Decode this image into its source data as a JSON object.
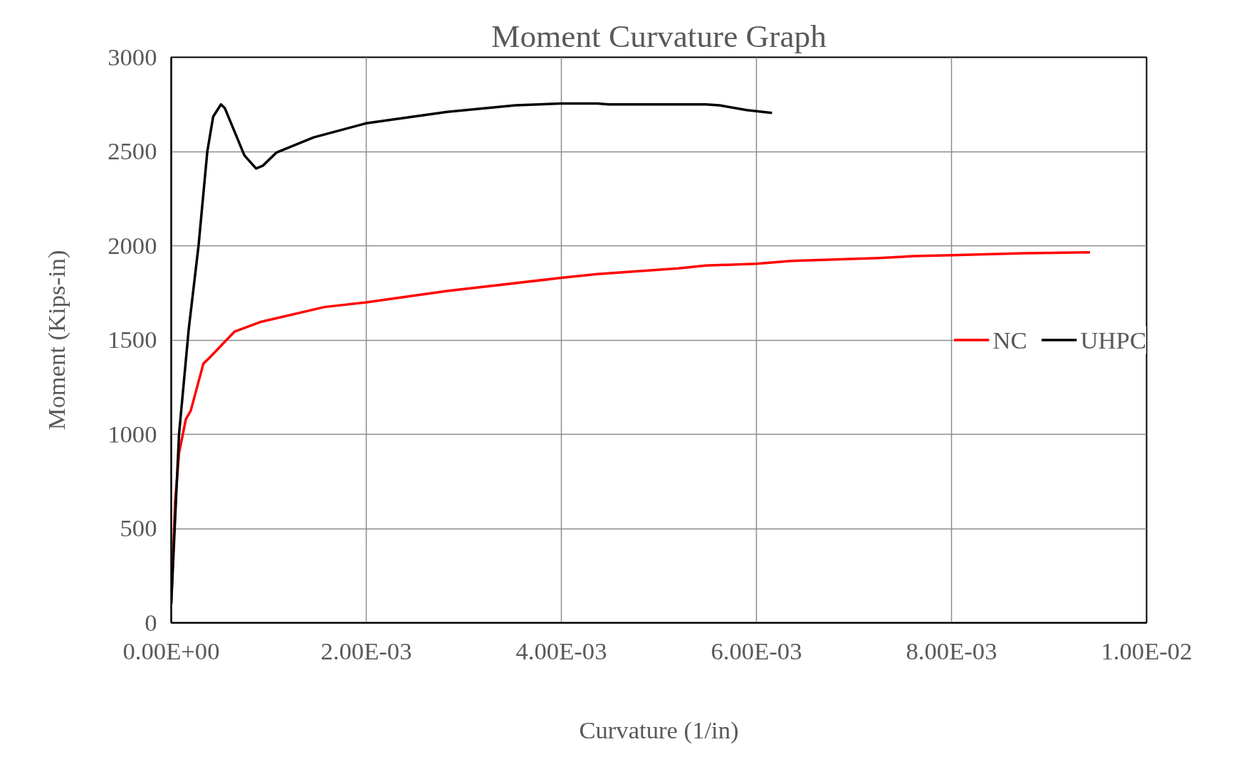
{
  "chart_data": {
    "type": "line",
    "title": "Moment Curvature Graph",
    "xlabel": "Curvature (1/in)",
    "ylabel": "Moment (Kips-in)",
    "xlim": [
      0,
      0.01
    ],
    "ylim": [
      0,
      3000
    ],
    "xticks": [
      {
        "value": 0,
        "label": "0.00E+00"
      },
      {
        "value": 0.002,
        "label": "2.00E-03"
      },
      {
        "value": 0.004,
        "label": "4.00E-03"
      },
      {
        "value": 0.006,
        "label": "6.00E-03"
      },
      {
        "value": 0.008,
        "label": "8.00E-03"
      },
      {
        "value": 0.01,
        "label": "1.00E-02"
      }
    ],
    "yticks": [
      0,
      500,
      1000,
      1500,
      2000,
      2500,
      3000
    ],
    "grid": true,
    "legend": "right",
    "line_style": "solid",
    "marker": "none",
    "series": [
      {
        "name": "NC",
        "color": "#ff0000",
        "x": [
          0,
          4e-05,
          8e-05,
          0.00015,
          0.0002,
          0.00033,
          0.00039,
          0.00065,
          0.00091,
          0.00157,
          0.002,
          0.00283,
          0.004,
          0.00437,
          0.0052,
          0.00548,
          0.006,
          0.00636,
          0.00725,
          0.00761,
          0.008,
          0.00874,
          0.00942
        ],
        "values": [
          100,
          640,
          900,
          1080,
          1125,
          1375,
          1405,
          1545,
          1595,
          1675,
          1700,
          1760,
          1830,
          1850,
          1880,
          1895,
          1905,
          1920,
          1935,
          1945,
          1950,
          1960,
          1965
        ]
      },
      {
        "name": "UHPC",
        "color": "#000000",
        "x": [
          0,
          8e-05,
          0.00018,
          0.00028,
          0.00037,
          0.00043,
          0.00051,
          0.00055,
          0.00075,
          0.00087,
          0.00094,
          0.00108,
          0.00146,
          0.002,
          0.00283,
          0.00353,
          0.004,
          0.00437,
          0.00448,
          0.00548,
          0.00562,
          0.0059,
          0.00616
        ],
        "values": [
          100,
          1000,
          1560,
          2000,
          2500,
          2685,
          2750,
          2730,
          2480,
          2410,
          2425,
          2495,
          2575,
          2650,
          2710,
          2745,
          2755,
          2755,
          2750,
          2750,
          2745,
          2720,
          2705
        ]
      }
    ]
  }
}
